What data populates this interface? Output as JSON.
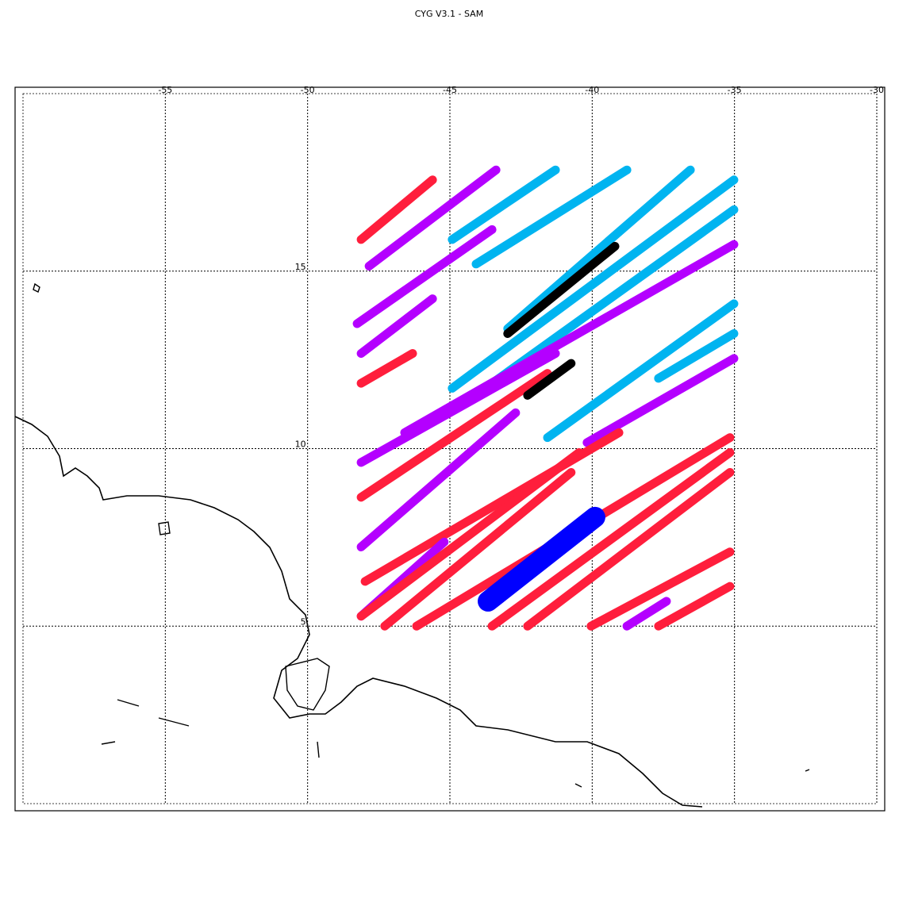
{
  "chart_data": {
    "type": "track-map",
    "title": "CYG V3.1 - SAM",
    "xlim": [
      -60,
      -30
    ],
    "ylim": [
      0,
      20
    ],
    "xticks": [
      -55,
      -50,
      -45,
      -40,
      -35,
      -30
    ],
    "yticks": [
      5,
      10,
      15
    ],
    "grid": true,
    "tracks": [
      {
        "color": "#ff1e3c",
        "x": [
          -48.12,
          -45.61
        ],
        "y": [
          15.89,
          17.57
        ]
      },
      {
        "color": "#b400ff",
        "x": [
          -48.26,
          -43.52
        ],
        "y": [
          13.52,
          16.17
        ]
      },
      {
        "color": "#b400ff",
        "x": [
          -47.84,
          -43.38
        ],
        "y": [
          15.14,
          17.85
        ]
      },
      {
        "color": "#00b4f0",
        "x": [
          -44.92,
          -41.29
        ],
        "y": [
          15.89,
          17.85
        ]
      },
      {
        "color": "#00b4f0",
        "x": [
          -44.08,
          -38.78
        ],
        "y": [
          15.2,
          17.85
        ]
      },
      {
        "color": "#00b4f0",
        "x": [
          -42.97,
          -36.55
        ],
        "y": [
          13.38,
          17.85
        ]
      },
      {
        "color": "#b400ff",
        "x": [
          -48.12,
          -45.61
        ],
        "y": [
          12.68,
          14.22
        ]
      },
      {
        "color": "#00b4f0",
        "x": [
          -44.92,
          -35.02
        ],
        "y": [
          11.7,
          17.57
        ]
      },
      {
        "color": "#00b4f0",
        "x": [
          -43.52,
          -35.02
        ],
        "y": [
          11.84,
          16.73
        ]
      },
      {
        "color": "#b400ff",
        "x": [
          -46.59,
          -35.02
        ],
        "y": [
          10.45,
          15.75
        ]
      },
      {
        "color": "#ff1e3c",
        "x": [
          -48.12,
          -46.31
        ],
        "y": [
          11.84,
          12.68
        ]
      },
      {
        "color": "#00b4f0",
        "x": [
          -41.57,
          -35.02
        ],
        "y": [
          10.31,
          14.08
        ]
      },
      {
        "color": "#b400ff",
        "x": [
          -48.12,
          -41.29
        ],
        "y": [
          9.61,
          12.68
        ]
      },
      {
        "color": "#00b4f0",
        "x": [
          -37.67,
          -35.02
        ],
        "y": [
          11.98,
          13.24
        ]
      },
      {
        "color": "#b400ff",
        "x": [
          -40.18,
          -35.02
        ],
        "y": [
          10.17,
          12.54
        ]
      },
      {
        "color": "#ff1e3c",
        "x": [
          -48.12,
          -41.57
        ],
        "y": [
          8.63,
          12.12
        ]
      },
      {
        "color": "#b400ff",
        "x": [
          -48.12,
          -42.69
        ],
        "y": [
          7.23,
          11.01
        ]
      },
      {
        "color": "#ff1e3c",
        "x": [
          -47.98,
          -39.06
        ],
        "y": [
          6.26,
          10.45
        ]
      },
      {
        "color": "#b400ff",
        "x": [
          -48.12,
          -45.2
        ],
        "y": [
          5.28,
          7.37
        ]
      },
      {
        "color": "#ff1e3c",
        "x": [
          -48.12,
          -40.46
        ],
        "y": [
          5.28,
          9.89
        ]
      },
      {
        "color": "#ff1e3c",
        "x": [
          -47.29,
          -40.74
        ],
        "y": [
          5.0,
          9.33
        ]
      },
      {
        "color": "#ff1e3c",
        "x": [
          -46.17,
          -35.16
        ],
        "y": [
          5.0,
          10.31
        ]
      },
      {
        "color": "#0000ff",
        "x": [
          -43.66,
          -39.9
        ],
        "y": [
          5.7,
          8.07
        ]
      },
      {
        "color": "#ff1e3c",
        "x": [
          -43.52,
          -35.16
        ],
        "y": [
          5.0,
          9.89
        ]
      },
      {
        "color": "#ff1e3c",
        "x": [
          -42.27,
          -35.16
        ],
        "y": [
          5.0,
          9.33
        ]
      },
      {
        "color": "#ff1e3c",
        "x": [
          -40.04,
          -35.16
        ],
        "y": [
          5.0,
          7.09
        ]
      },
      {
        "color": "#ff1e3c",
        "x": [
          -37.67,
          -35.16
        ],
        "y": [
          5.0,
          6.12
        ]
      },
      {
        "color": "#b400ff",
        "x": [
          -38.78,
          -37.39
        ],
        "y": [
          5.0,
          5.7
        ]
      },
      {
        "color": "#000000",
        "x": [
          -42.97,
          -39.2
        ],
        "y": [
          13.24,
          15.7
        ]
      },
      {
        "color": "#000000",
        "x": [
          -42.27,
          -40.74
        ],
        "y": [
          11.5,
          12.4
        ]
      }
    ]
  }
}
